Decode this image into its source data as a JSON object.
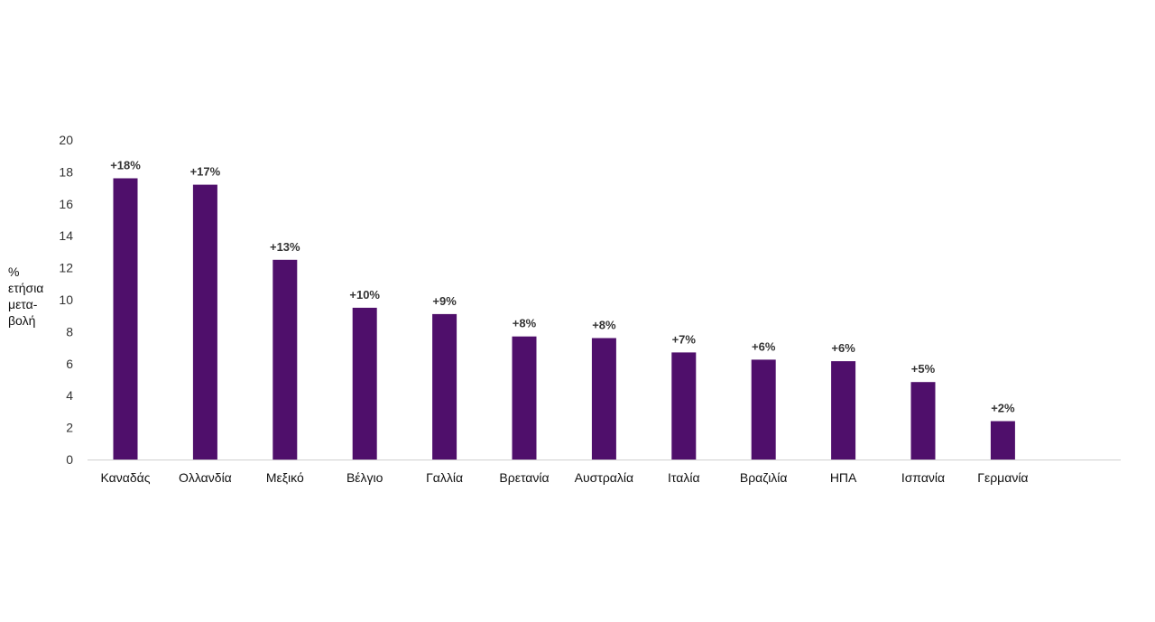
{
  "chart_data": {
    "type": "bar",
    "title": "",
    "xlabel": "",
    "ylabel": "% ετήσια μετα-βολή",
    "ylabel_lines": [
      "%",
      "ετήσια",
      "μετα-",
      "βολή"
    ],
    "ylim": [
      0,
      20
    ],
    "yticks": [
      0,
      2,
      4,
      6,
      8,
      10,
      12,
      14,
      16,
      18,
      20
    ],
    "grid": false,
    "legend": "none",
    "bar_color": "#4f0f6b",
    "categories": [
      "Καναδάς",
      "Ολλανδία",
      "Μεξικό",
      "Βέλγιο",
      "Γαλλία",
      "Βρετανία",
      "Αυστραλία",
      "Ιταλία",
      "Βραζιλία",
      "ΗΠΑ",
      "Ισπανία",
      "Γερμανία"
    ],
    "values": [
      17.6,
      17.2,
      12.5,
      9.5,
      9.1,
      7.7,
      7.6,
      6.7,
      6.25,
      6.15,
      4.85,
      2.4
    ],
    "data_labels": [
      "+18%",
      "+17%",
      "+13%",
      "+10%",
      "+9%",
      "+8%",
      "+8%",
      "+7%",
      "+6%",
      "+6%",
      "+5%",
      "+2%"
    ]
  }
}
